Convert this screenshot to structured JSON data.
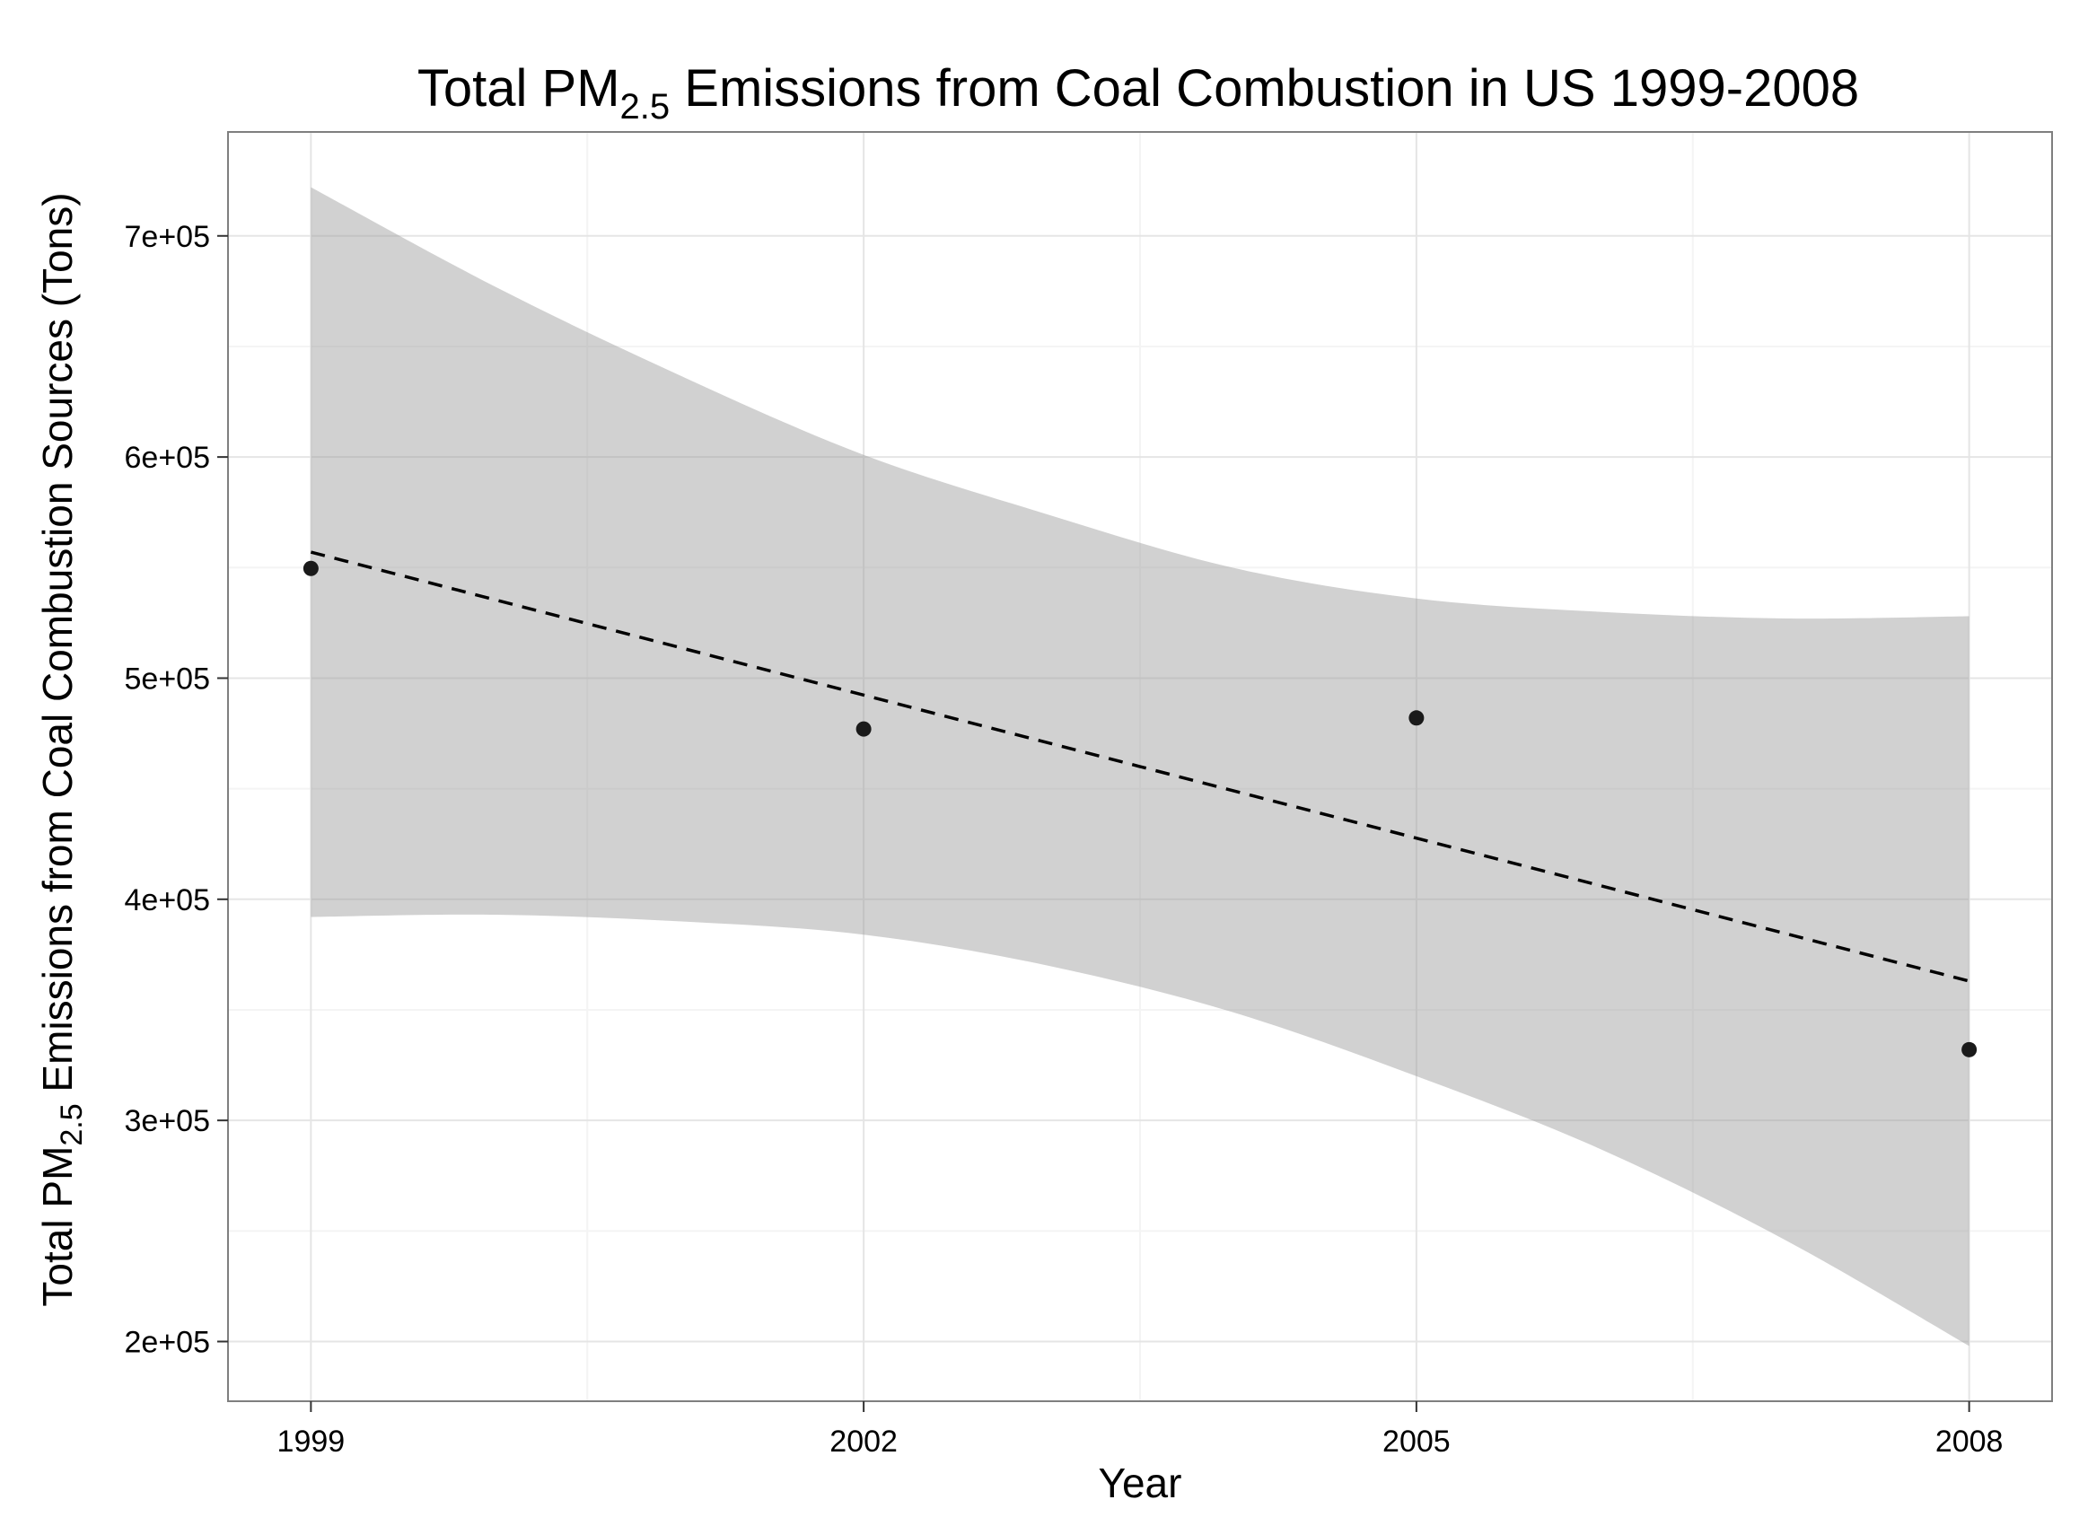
{
  "chart_data": {
    "type": "scatter",
    "title": {
      "main": "Total PM",
      "sub": "2.5",
      "rest": " Emissions from Coal Combustion in US 1999-2008"
    },
    "xlabel": "Year",
    "ylabel": {
      "main": "Total PM",
      "sub": "2.5",
      "rest": " Emissions from Coal Combustion Sources (Tons)"
    },
    "x_ticks": [
      1999,
      2002,
      2005,
      2008
    ],
    "x_tick_labels": [
      "1999",
      "2002",
      "2005",
      "2008"
    ],
    "y_ticks": [
      200000,
      300000,
      400000,
      500000,
      600000,
      700000
    ],
    "y_tick_labels": [
      "2e+05",
      "3e+05",
      "4e+05",
      "5e+05",
      "6e+05",
      "7e+05"
    ],
    "xlim": [
      1998.55,
      2008.45
    ],
    "ylim": [
      173000,
      747000
    ],
    "grid": true,
    "points": {
      "x": [
        1999,
        2002,
        2005,
        2008
      ],
      "y": [
        549600,
        477000,
        482000,
        332000
      ]
    },
    "trend_line": {
      "style": "dashed",
      "x": [
        1999,
        2008
      ],
      "y": [
        557000,
        363000
      ]
    },
    "confidence_band": {
      "x": [
        1999,
        2000,
        2001,
        2002,
        2003,
        2004,
        2005,
        2006,
        2007,
        2008
      ],
      "upper": [
        722000,
        677000,
        637000,
        601000,
        574000,
        550000,
        536000,
        530000,
        527000,
        528000
      ],
      "lower": [
        392000,
        393000,
        390000,
        384000,
        370000,
        349000,
        320000,
        287000,
        246000,
        198000
      ]
    },
    "colors": {
      "points": "#1a1a1a",
      "trend_line": "#000000",
      "band": "#999999",
      "grid_major": "#e5e5e5",
      "grid_minor": "#f4f4f4",
      "panel_border": "#7f7f7f"
    }
  }
}
